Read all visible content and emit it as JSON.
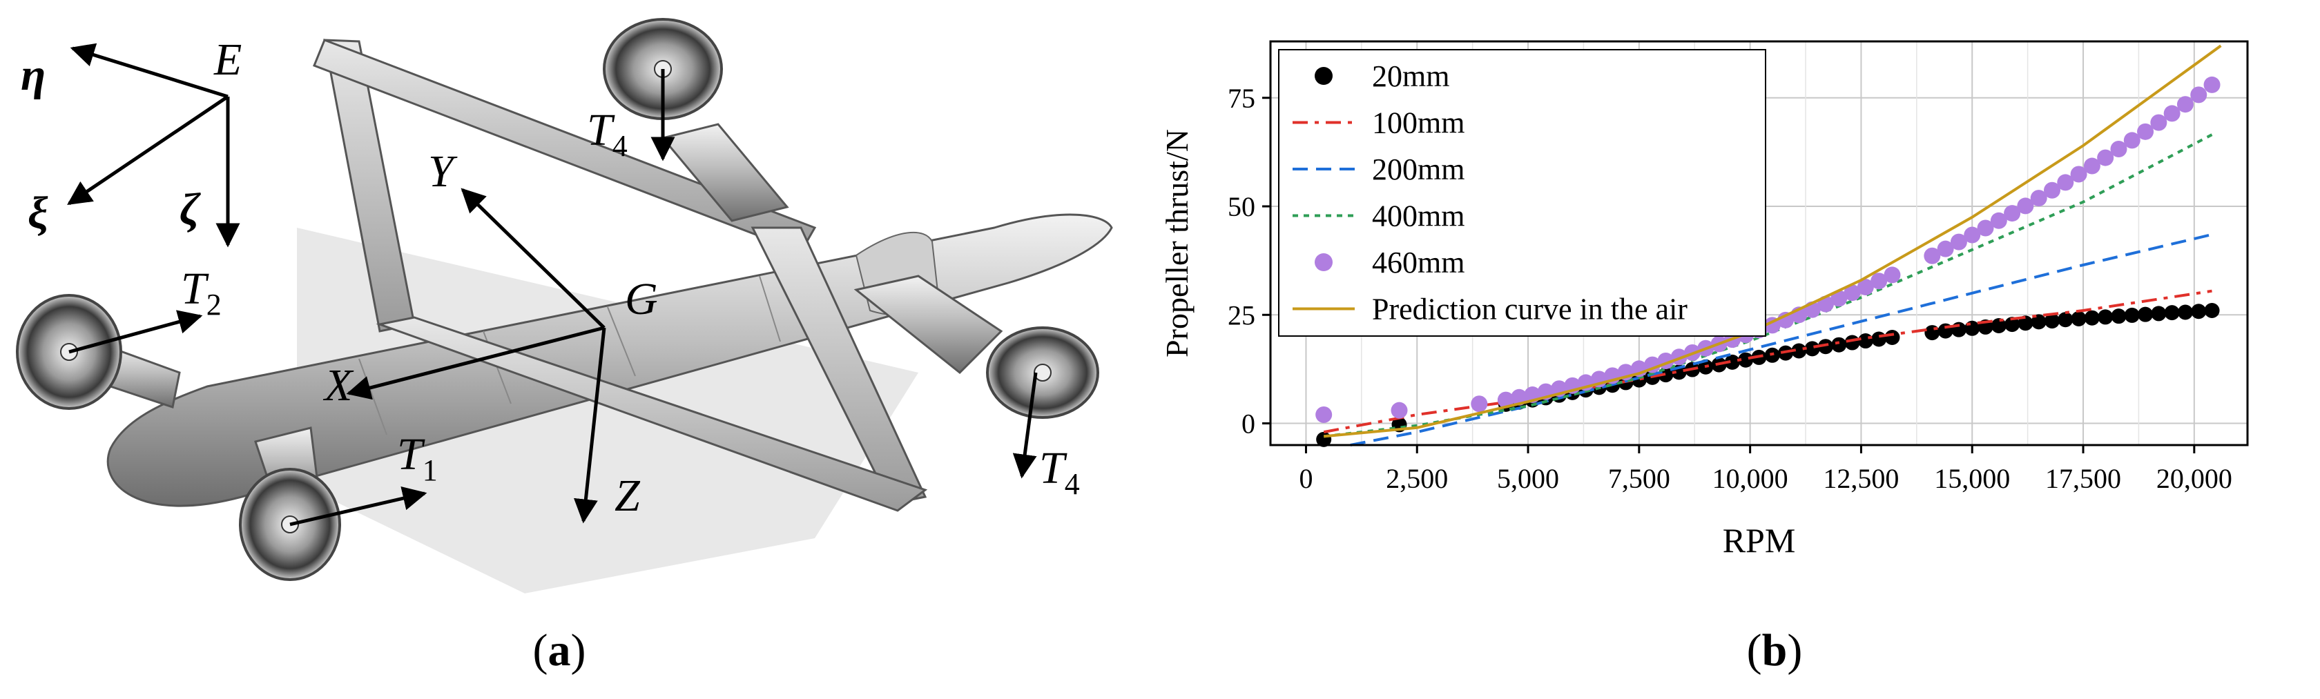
{
  "panel_a": {
    "caption_letter": "a",
    "labels": {
      "E": "E",
      "eta": "η",
      "xi": "ξ",
      "zeta": "ζ",
      "X": "X",
      "Y": "Y",
      "Z": "Z",
      "G": "G",
      "T": "T",
      "sub1": "1",
      "sub2": "2",
      "sub4": "4"
    }
  },
  "panel_b": {
    "caption_letter": "b"
  },
  "chart_data": {
    "type": "line",
    "xlabel": "RPM",
    "ylabel": "Propeller thrust/N",
    "xlim": [
      -800,
      21200
    ],
    "ylim": [
      -5,
      88
    ],
    "xticks": [
      0,
      2500,
      5000,
      7500,
      10000,
      12500,
      15000,
      17500,
      20000
    ],
    "xtick_labels": [
      "0",
      "2,500",
      "5,000",
      "7,500",
      "10,000",
      "12,500",
      "15,000",
      "17,500",
      "20,000"
    ],
    "yticks": [
      0,
      25,
      50,
      75
    ],
    "ytick_labels": [
      "0",
      "25",
      "50",
      "75"
    ],
    "grid": true,
    "legend_position": "top-left",
    "series": [
      {
        "name": "20mm",
        "kind": "scatter",
        "color": "#000000",
        "x": [
          400,
          2100,
          4500,
          4800,
          5100,
          5400,
          5700,
          6000,
          6300,
          6600,
          6900,
          7200,
          7500,
          7800,
          8100,
          8400,
          8700,
          9000,
          9300,
          9600,
          9900,
          10200,
          10500,
          10800,
          11100,
          11400,
          11700,
          12000,
          12300,
          12600,
          12900,
          13200,
          14100,
          14400,
          14700,
          15000,
          15300,
          15600,
          15900,
          16200,
          16500,
          16800,
          17100,
          17400,
          17700,
          18000,
          18300,
          18600,
          18900,
          19200,
          19500,
          19800,
          20100,
          20400
        ],
        "y": [
          -3.7,
          -0.3,
          4.4,
          4.9,
          5.4,
          5.9,
          6.5,
          7.1,
          7.7,
          8.3,
          8.8,
          9.4,
          10.0,
          10.6,
          11.2,
          11.8,
          12.4,
          13.0,
          13.5,
          14.1,
          14.6,
          15.2,
          15.7,
          16.2,
          16.7,
          17.2,
          17.7,
          18.1,
          18.6,
          19.0,
          19.4,
          19.8,
          20.9,
          21.3,
          21.6,
          21.9,
          22.2,
          22.5,
          22.8,
          23.1,
          23.4,
          23.6,
          23.9,
          24.1,
          24.3,
          24.5,
          24.7,
          24.9,
          25.1,
          25.3,
          25.5,
          25.6,
          25.8,
          26.0
        ]
      },
      {
        "name": "100mm",
        "kind": "line",
        "dash": "dashdot",
        "color": "#e0302a",
        "x": [
          400,
          2500,
          5000,
          7500,
          10000,
          12500,
          15000,
          17500,
          20400
        ],
        "y": [
          -2,
          2,
          5.6,
          10.2,
          15.1,
          19.5,
          23.0,
          26.0,
          30.5
        ]
      },
      {
        "name": "200mm",
        "kind": "line",
        "dash": "dashed",
        "color": "#1e6fd9",
        "x": [
          1000,
          2500,
          5000,
          7500,
          10000,
          12500,
          15000,
          17500,
          20400
        ],
        "y": [
          -5,
          -2,
          4,
          10.5,
          17,
          23.5,
          30,
          36.5,
          43.5
        ]
      },
      {
        "name": "400mm",
        "kind": "line",
        "dash": "dotted",
        "color": "#2f9e57",
        "x": [
          400,
          2500,
          5000,
          7500,
          10000,
          12500,
          15000,
          17500,
          20400
        ],
        "y": [
          -3,
          -0.5,
          4,
          10.5,
          19,
          29,
          40,
          51,
          66.5
        ]
      },
      {
        "name": "460mm",
        "kind": "scatter",
        "color": "#b07ee0",
        "x": [
          400,
          2100,
          3900,
          4500,
          4800,
          5100,
          5400,
          5700,
          6000,
          6300,
          6600,
          6900,
          7200,
          7500,
          7800,
          8100,
          8400,
          8700,
          9000,
          9300,
          9600,
          9900,
          10200,
          10500,
          10800,
          11100,
          11400,
          11700,
          12000,
          12300,
          12600,
          12900,
          13200,
          14100,
          14400,
          14700,
          15000,
          15300,
          15600,
          15900,
          16200,
          16500,
          16800,
          17100,
          17400,
          17700,
          18000,
          18300,
          18600,
          18900,
          19200,
          19500,
          19800,
          20100,
          20400
        ],
        "y": [
          2,
          3,
          4.5,
          5.4,
          6.0,
          6.6,
          7.3,
          8.0,
          8.7,
          9.4,
          10.2,
          11.0,
          11.8,
          12.6,
          13.5,
          14.4,
          15.3,
          16.3,
          17.3,
          18.3,
          19.3,
          20.4,
          21.5,
          22.6,
          23.8,
          25.0,
          26.2,
          27.5,
          28.8,
          30.1,
          31.4,
          32.8,
          34.2,
          38.6,
          40.2,
          41.8,
          43.4,
          45.0,
          46.7,
          48.4,
          50.1,
          51.9,
          53.7,
          55.5,
          57.4,
          59.3,
          61.2,
          63.2,
          65.2,
          67.2,
          69.3,
          71.4,
          73.5,
          75.7,
          78.0
        ]
      },
      {
        "name": "Prediction curve in the air",
        "kind": "line",
        "dash": "solid",
        "color": "#c89a1a",
        "x": [
          400,
          2500,
          5000,
          7500,
          10000,
          12500,
          15000,
          17500,
          20600
        ],
        "y": [
          -3,
          -1,
          5,
          11.5,
          21,
          33,
          47.5,
          64,
          87
        ]
      }
    ]
  }
}
